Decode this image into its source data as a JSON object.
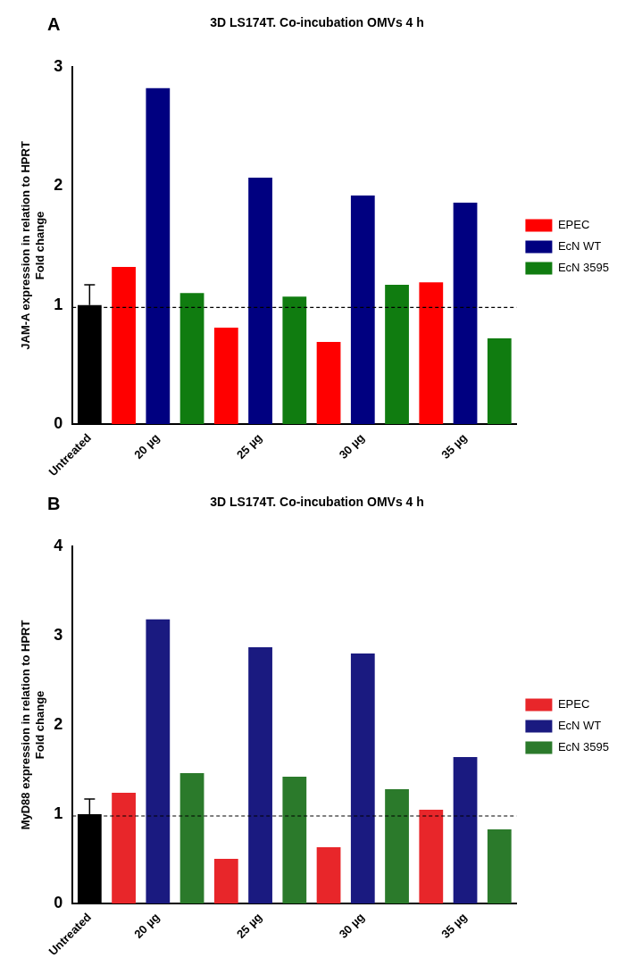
{
  "chart_data": [
    {
      "type": "bar",
      "annotations": [
        "A"
      ],
      "title": "3D LS174T. Co-incubation OMVs 4 h",
      "ylabel": "JAM-A expression in relation to HPRT\nFold change",
      "categories": [
        "Untreated",
        null,
        "20 µg",
        null,
        null,
        "25 µg",
        null,
        null,
        "30 µg",
        null,
        null,
        "35 µg",
        null
      ],
      "series": [
        {
          "color": "#000000",
          "values": [
            1.0,
            null,
            null,
            null,
            null,
            null,
            null,
            null,
            null,
            null,
            null,
            null,
            null
          ],
          "errors": [
            [
              1.0,
              1.17
            ],
            null,
            null,
            null,
            null,
            null,
            null,
            null,
            null,
            null,
            null,
            null,
            null
          ]
        },
        {
          "name": "EPEC",
          "color": "#ff0000",
          "values": [
            null,
            1.32,
            null,
            null,
            0.81,
            null,
            null,
            0.69,
            null,
            null,
            1.19,
            null,
            null
          ]
        },
        {
          "name": "EcN WT",
          "color": "#000080",
          "values": [
            null,
            null,
            2.82,
            null,
            null,
            2.07,
            null,
            null,
            1.92,
            null,
            null,
            1.86,
            null
          ]
        },
        {
          "name": "EcN 3595",
          "color": "#107c10",
          "values": [
            null,
            null,
            null,
            1.1,
            null,
            null,
            1.07,
            null,
            null,
            1.17,
            null,
            null,
            0.72
          ]
        }
      ],
      "ylim": [
        0,
        3
      ],
      "yticks": [
        0,
        1,
        2,
        3
      ],
      "grid": false,
      "legend": "right",
      "ref_lines": [
        {
          "axis": "y",
          "value": 0.98,
          "line_style": "dashed"
        }
      ]
    },
    {
      "type": "bar",
      "annotations": [
        "B"
      ],
      "title": "3D LS174T. Co-incubation OMVs 4 h",
      "ylabel": "MyD88 expression in relation to HPRT\nFold change",
      "categories": [
        "Untreated",
        null,
        "20 µg",
        null,
        null,
        "25 µg",
        null,
        null,
        "30 µg",
        null,
        null,
        "35 µg",
        null
      ],
      "series": [
        {
          "color": "#000000",
          "values": [
            1.0,
            null,
            null,
            null,
            null,
            null,
            null,
            null,
            null,
            null,
            null,
            null,
            null
          ],
          "errors": [
            [
              1.0,
              1.17
            ],
            null,
            null,
            null,
            null,
            null,
            null,
            null,
            null,
            null,
            null,
            null,
            null
          ]
        },
        {
          "name": "EPEC",
          "color": "#e8262a",
          "values": [
            null,
            1.24,
            null,
            null,
            0.5,
            null,
            null,
            0.63,
            null,
            null,
            1.05,
            null,
            null
          ]
        },
        {
          "name": "EcN WT",
          "color": "#1a1a80",
          "values": [
            null,
            null,
            3.18,
            null,
            null,
            2.87,
            null,
            null,
            2.8,
            null,
            null,
            1.64,
            null
          ]
        },
        {
          "name": "EcN 3595",
          "color": "#2b7a2b",
          "values": [
            null,
            null,
            null,
            1.46,
            null,
            null,
            1.42,
            null,
            null,
            1.28,
            null,
            null,
            0.83
          ]
        }
      ],
      "ylim": [
        0,
        4
      ],
      "yticks": [
        0,
        1,
        2,
        3,
        4
      ],
      "grid": false,
      "legend": "right",
      "ref_lines": [
        {
          "axis": "y",
          "value": 0.98,
          "line_style": "dashed"
        }
      ]
    }
  ]
}
